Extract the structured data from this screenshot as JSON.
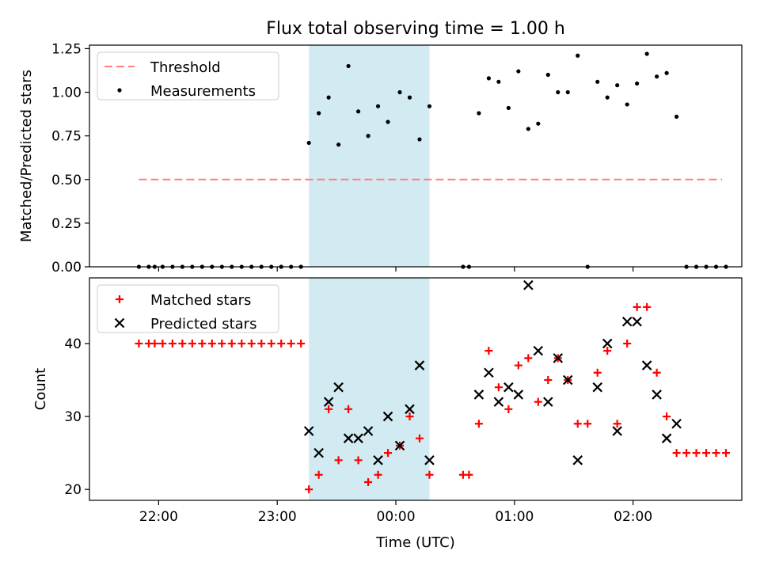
{
  "title": "Flux total observing time = 1.00 h",
  "chart_data": [
    {
      "type": "scatter",
      "title": "Flux total observing time = 1.00 h",
      "xlabel": "",
      "ylabel": "Matched/Predicted stars",
      "xlim": [
        "21:25",
        "02:55"
      ],
      "ylim": [
        0,
        1.27
      ],
      "yticks": [
        "0.00",
        "0.25",
        "0.50",
        "0.75",
        "1.00",
        "1.25"
      ],
      "xticks": [
        "22:00",
        "23:00",
        "00:00",
        "01:00",
        "02:00"
      ],
      "legend": {
        "placement": "top-left",
        "entries": [
          "Threshold",
          "Measurements"
        ]
      },
      "shaded_region": {
        "start": "23:16",
        "end": "00:17",
        "color": "#add8e6"
      },
      "threshold": {
        "name": "Threshold",
        "y": 0.5,
        "x_start": "21:50",
        "x_end": "02:45",
        "color": "#ff7f7f",
        "style": "dashed"
      },
      "series": [
        {
          "name": "Measurements",
          "color": "#000000",
          "points": [
            [
              "21:50",
              0
            ],
            [
              "21:55",
              0
            ],
            [
              "21:58",
              0
            ],
            [
              "22:02",
              0
            ],
            [
              "22:07",
              0
            ],
            [
              "22:12",
              0
            ],
            [
              "22:17",
              0
            ],
            [
              "22:22",
              0
            ],
            [
              "22:27",
              0
            ],
            [
              "22:32",
              0
            ],
            [
              "22:37",
              0
            ],
            [
              "22:42",
              0
            ],
            [
              "22:47",
              0
            ],
            [
              "22:52",
              0
            ],
            [
              "22:57",
              0
            ],
            [
              "23:02",
              0
            ],
            [
              "23:07",
              0
            ],
            [
              "23:12",
              0
            ],
            [
              "23:16",
              0.71
            ],
            [
              "23:21",
              0.88
            ],
            [
              "23:26",
              0.97
            ],
            [
              "23:31",
              0.7
            ],
            [
              "23:36",
              1.15
            ],
            [
              "23:41",
              0.89
            ],
            [
              "23:46",
              0.75
            ],
            [
              "23:51",
              0.92
            ],
            [
              "23:56",
              0.83
            ],
            [
              "00:02",
              1.0
            ],
            [
              "00:07",
              0.97
            ],
            [
              "00:12",
              0.73
            ],
            [
              "00:17",
              0.92
            ],
            [
              "00:34",
              0
            ],
            [
              "00:37",
              0
            ],
            [
              "00:42",
              0.88
            ],
            [
              "00:47",
              1.08
            ],
            [
              "00:52",
              1.06
            ],
            [
              "00:57",
              0.91
            ],
            [
              "01:02",
              1.12
            ],
            [
              "01:07",
              0.79
            ],
            [
              "01:12",
              0.82
            ],
            [
              "01:17",
              1.1
            ],
            [
              "01:22",
              1.0
            ],
            [
              "01:27",
              1.0
            ],
            [
              "01:32",
              1.21
            ],
            [
              "01:37",
              0
            ],
            [
              "01:42",
              1.06
            ],
            [
              "01:47",
              0.97
            ],
            [
              "01:52",
              1.04
            ],
            [
              "01:57",
              0.93
            ],
            [
              "02:02",
              1.05
            ],
            [
              "02:07",
              1.22
            ],
            [
              "02:12",
              1.09
            ],
            [
              "02:17",
              1.11
            ],
            [
              "02:22",
              0.86
            ],
            [
              "02:27",
              0
            ],
            [
              "02:32",
              0
            ],
            [
              "02:37",
              0
            ],
            [
              "02:42",
              0
            ],
            [
              "02:47",
              0
            ]
          ]
        }
      ]
    },
    {
      "type": "scatter",
      "title": "",
      "xlabel": "Time (UTC)",
      "ylabel": "Count",
      "xlim": [
        "21:25",
        "02:55"
      ],
      "ylim": [
        18.5,
        49
      ],
      "yticks": [
        "20",
        "30",
        "40"
      ],
      "xticks": [
        "22:00",
        "23:00",
        "00:00",
        "01:00",
        "02:00"
      ],
      "legend": {
        "placement": "top-left",
        "entries": [
          "Matched stars",
          "Predicted stars"
        ]
      },
      "shaded_region": {
        "start": "23:16",
        "end": "00:17",
        "color": "#add8e6"
      },
      "series": [
        {
          "name": "Matched stars",
          "marker": "plus",
          "color": "#ff0000",
          "points": [
            [
              "21:50",
              40
            ],
            [
              "21:55",
              40
            ],
            [
              "21:58",
              40
            ],
            [
              "22:02",
              40
            ],
            [
              "22:07",
              40
            ],
            [
              "22:12",
              40
            ],
            [
              "22:17",
              40
            ],
            [
              "22:22",
              40
            ],
            [
              "22:27",
              40
            ],
            [
              "22:32",
              40
            ],
            [
              "22:37",
              40
            ],
            [
              "22:42",
              40
            ],
            [
              "22:47",
              40
            ],
            [
              "22:52",
              40
            ],
            [
              "22:57",
              40
            ],
            [
              "23:02",
              40
            ],
            [
              "23:07",
              40
            ],
            [
              "23:12",
              40
            ],
            [
              "23:16",
              20
            ],
            [
              "23:21",
              22
            ],
            [
              "23:26",
              31
            ],
            [
              "23:31",
              24
            ],
            [
              "23:36",
              31
            ],
            [
              "23:41",
              24
            ],
            [
              "23:46",
              21
            ],
            [
              "23:51",
              22
            ],
            [
              "23:56",
              25
            ],
            [
              "00:02",
              26
            ],
            [
              "00:07",
              30
            ],
            [
              "00:12",
              27
            ],
            [
              "00:17",
              22
            ],
            [
              "00:34",
              22
            ],
            [
              "00:37",
              22
            ],
            [
              "00:42",
              29
            ],
            [
              "00:47",
              39
            ],
            [
              "00:52",
              34
            ],
            [
              "00:57",
              31
            ],
            [
              "01:02",
              37
            ],
            [
              "01:07",
              38
            ],
            [
              "01:12",
              32
            ],
            [
              "01:17",
              35
            ],
            [
              "01:22",
              38
            ],
            [
              "01:27",
              35
            ],
            [
              "01:32",
              29
            ],
            [
              "01:37",
              29
            ],
            [
              "01:42",
              36
            ],
            [
              "01:47",
              39
            ],
            [
              "01:52",
              29
            ],
            [
              "01:57",
              40
            ],
            [
              "02:02",
              45
            ],
            [
              "02:07",
              45
            ],
            [
              "02:12",
              36
            ],
            [
              "02:17",
              30
            ],
            [
              "02:22",
              25
            ],
            [
              "02:27",
              25
            ],
            [
              "02:32",
              25
            ],
            [
              "02:37",
              25
            ],
            [
              "02:42",
              25
            ],
            [
              "02:47",
              25
            ]
          ]
        },
        {
          "name": "Predicted stars",
          "marker": "x",
          "color": "#000000",
          "points": [
            [
              "23:16",
              28
            ],
            [
              "23:21",
              25
            ],
            [
              "23:26",
              32
            ],
            [
              "23:31",
              34
            ],
            [
              "23:36",
              27
            ],
            [
              "23:41",
              27
            ],
            [
              "23:46",
              28
            ],
            [
              "23:51",
              24
            ],
            [
              "23:56",
              30
            ],
            [
              "00:02",
              26
            ],
            [
              "00:07",
              31
            ],
            [
              "00:12",
              37
            ],
            [
              "00:17",
              24
            ],
            [
              "00:42",
              33
            ],
            [
              "00:47",
              36
            ],
            [
              "00:52",
              32
            ],
            [
              "00:57",
              34
            ],
            [
              "01:02",
              33
            ],
            [
              "01:07",
              48
            ],
            [
              "01:12",
              39
            ],
            [
              "01:17",
              32
            ],
            [
              "01:22",
              38
            ],
            [
              "01:27",
              35
            ],
            [
              "01:32",
              24
            ],
            [
              "01:42",
              34
            ],
            [
              "01:47",
              40
            ],
            [
              "01:52",
              28
            ],
            [
              "01:57",
              43
            ],
            [
              "02:02",
              43
            ],
            [
              "02:07",
              37
            ],
            [
              "02:12",
              33
            ],
            [
              "02:17",
              27
            ],
            [
              "02:22",
              29
            ]
          ]
        }
      ]
    }
  ]
}
